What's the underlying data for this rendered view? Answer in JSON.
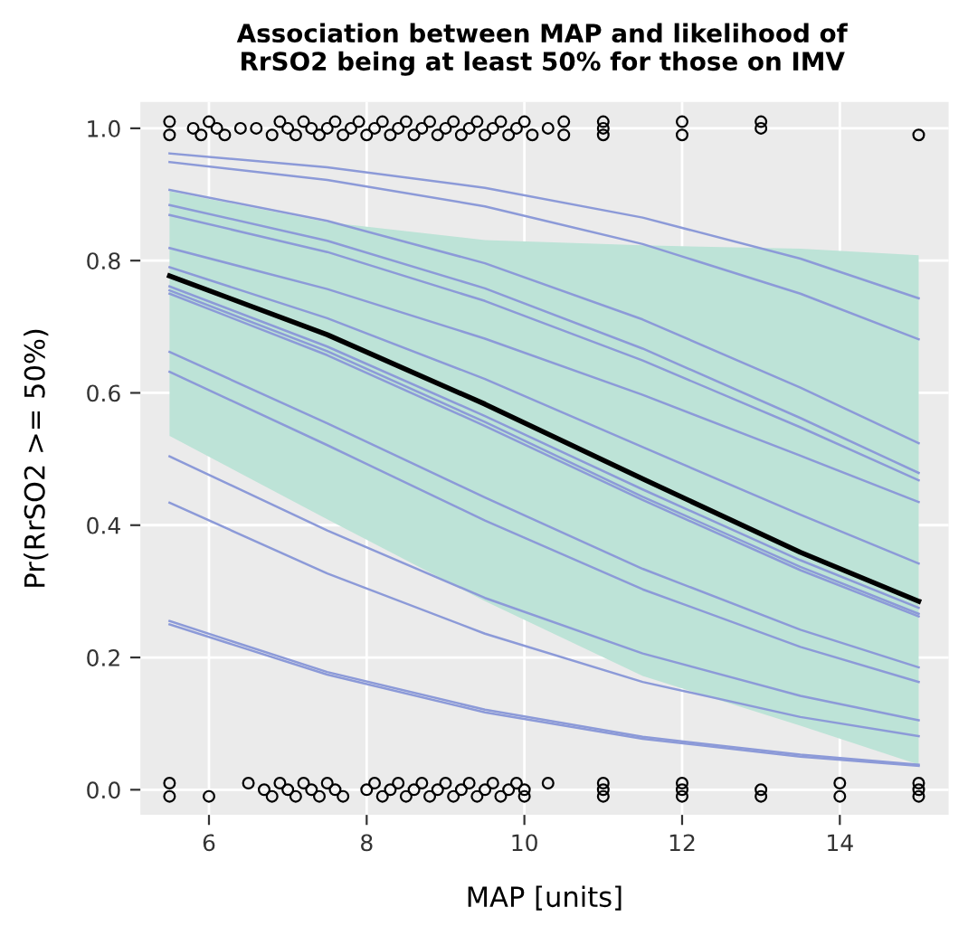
{
  "chart_data": {
    "type": "line",
    "title": "Association between MAP and likelihood of\nRrSO2 being at least 50% for those on IMV",
    "xlabel": "MAP [units]",
    "ylabel": "Pr(RrSO2 >= 50%)",
    "x": [
      5.5,
      7.5,
      9.5,
      11.5,
      13.5,
      15
    ],
    "xlim": [
      5.13,
      15.38
    ],
    "xticks": [
      6,
      8,
      10,
      12,
      14
    ],
    "ylim": [
      -0.038,
      1.04
    ],
    "yticks": [
      {
        "value": 0,
        "label": "0.0"
      },
      {
        "value": 0.2,
        "label": "0.2"
      },
      {
        "value": 0.4,
        "label": "0.4"
      },
      {
        "value": 0.6,
        "label": "0.6"
      },
      {
        "value": 0.8,
        "label": "0.8"
      },
      {
        "value": 1,
        "label": "1.0"
      }
    ],
    "grid": true,
    "line_style": "solid",
    "marker": "none",
    "series": [
      {
        "color": "#8c9ad8",
        "values": [
          0.962,
          0.941,
          0.91,
          0.865,
          0.803,
          0.743
        ]
      },
      {
        "color": "#8c9ad8",
        "values": [
          0.949,
          0.922,
          0.882,
          0.825,
          0.75,
          0.681
        ]
      },
      {
        "color": "#8c9ad8",
        "values": [
          0.907,
          0.86,
          0.796,
          0.711,
          0.608,
          0.524
        ]
      },
      {
        "color": "#8c9ad8",
        "values": [
          0.884,
          0.83,
          0.758,
          0.667,
          0.562,
          0.479
        ]
      },
      {
        "color": "#8c9ad8",
        "values": [
          0.869,
          0.813,
          0.739,
          0.649,
          0.548,
          0.468
        ]
      },
      {
        "color": "#8c9ad8",
        "values": [
          0.819,
          0.757,
          0.682,
          0.597,
          0.505,
          0.435
        ]
      },
      {
        "color": "#8c9ad8",
        "values": [
          0.79,
          0.713,
          0.621,
          0.518,
          0.416,
          0.342
        ]
      },
      {
        "color": "#8c9ad8",
        "values": [
          0.761,
          0.67,
          0.565,
          0.454,
          0.347,
          0.275
        ]
      },
      {
        "color": "#8c9ad8",
        "values": [
          0.755,
          0.663,
          0.556,
          0.443,
          0.337,
          0.266
        ]
      },
      {
        "color": "#8c9ad8",
        "values": [
          0.75,
          0.657,
          0.55,
          0.438,
          0.332,
          0.262
        ]
      },
      {
        "color": "#8c9ad8",
        "values": [
          0.662,
          0.554,
          0.442,
          0.334,
          0.242,
          0.185
        ]
      },
      {
        "color": "#8c9ad8",
        "values": [
          0.632,
          0.521,
          0.407,
          0.303,
          0.216,
          0.163
        ]
      },
      {
        "color": "#8c9ad8",
        "values": [
          0.504,
          0.392,
          0.29,
          0.206,
          0.142,
          0.105
        ]
      },
      {
        "color": "#8c9ad8",
        "values": [
          0.434,
          0.327,
          0.236,
          0.163,
          0.11,
          0.081
        ]
      },
      {
        "color": "#8c9ad8",
        "values": [
          0.255,
          0.178,
          0.121,
          0.08,
          0.053,
          0.038
        ]
      },
      {
        "color": "#8c9ad8",
        "values": [
          0.25,
          0.174,
          0.117,
          0.077,
          0.05,
          0.036
        ]
      },
      {
        "color": "#000000",
        "values": [
          0.777,
          0.688,
          0.583,
          0.47,
          0.359,
          0.285
        ],
        "lower": [
          0.535,
          0.409,
          0.285,
          0.172,
          0.097,
          0.038
        ],
        "upper": [
          0.905,
          0.858,
          0.831,
          0.823,
          0.818,
          0.808
        ]
      },
      {
        "type": "scatter",
        "marker": "circle",
        "color": "#000000",
        "x": [
          5.5,
          5.5,
          5.8,
          5.9,
          6.0,
          6.1,
          6.2,
          6.4,
          6.6,
          6.8,
          6.9,
          7.0,
          7.1,
          7.2,
          7.3,
          7.4,
          7.5,
          7.6,
          7.7,
          7.8,
          7.9,
          8.0,
          8.1,
          8.2,
          8.3,
          8.4,
          8.5,
          8.6,
          8.7,
          8.8,
          8.9,
          9.0,
          9.1,
          9.2,
          9.3,
          9.4,
          9.5,
          9.6,
          9.7,
          9.8,
          9.9,
          10.0,
          10.1,
          10.3,
          10.5,
          10.5,
          11,
          11,
          11,
          12,
          12,
          13,
          13,
          15,
          5.5,
          5.5,
          6.0,
          6.5,
          6.7,
          6.8,
          6.9,
          7.0,
          7.1,
          7.2,
          7.3,
          7.4,
          7.5,
          7.6,
          7.7,
          8.0,
          8.1,
          8.2,
          8.3,
          8.4,
          8.5,
          8.6,
          8.7,
          8.8,
          8.9,
          9.0,
          9.1,
          9.2,
          9.3,
          9.4,
          9.5,
          9.6,
          9.7,
          9.8,
          9.9,
          10.0,
          10.0,
          10.3,
          11,
          11,
          11,
          12,
          12,
          12,
          13,
          13,
          14,
          14,
          15,
          15,
          15
        ],
        "values": [
          1.01,
          0.99,
          1.0,
          0.99,
          1.01,
          1.0,
          0.99,
          1.0,
          1.0,
          0.99,
          1.01,
          1.0,
          0.99,
          1.01,
          1.0,
          0.99,
          1.0,
          1.01,
          0.99,
          1.0,
          1.01,
          0.99,
          1.0,
          1.01,
          0.99,
          1.0,
          1.01,
          0.99,
          1.0,
          1.01,
          0.99,
          1.0,
          1.01,
          0.99,
          1.0,
          1.01,
          0.99,
          1.0,
          1.01,
          0.99,
          1.0,
          1.01,
          0.99,
          1.0,
          1.01,
          0.99,
          1.01,
          1.0,
          0.99,
          1.01,
          0.99,
          1.01,
          1.0,
          0.99,
          0.01,
          -0.01,
          -0.01,
          0.01,
          0.0,
          -0.01,
          0.01,
          0.0,
          -0.01,
          0.01,
          0.0,
          -0.01,
          0.01,
          0.0,
          -0.01,
          0.0,
          0.01,
          -0.01,
          0.0,
          0.01,
          -0.01,
          0.0,
          0.01,
          -0.01,
          0.0,
          0.01,
          -0.01,
          0.0,
          0.01,
          -0.01,
          0.0,
          0.01,
          -0.01,
          0.0,
          0.01,
          -0.01,
          0.0,
          0.01,
          0.01,
          0.0,
          -0.01,
          0.01,
          0.0,
          -0.01,
          0.0,
          -0.01,
          0.01,
          -0.01,
          0.01,
          0.0,
          -0.01
        ]
      }
    ]
  }
}
